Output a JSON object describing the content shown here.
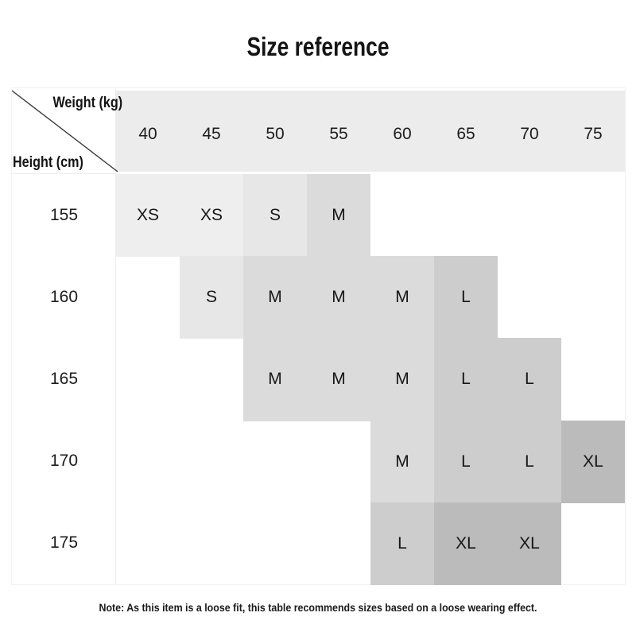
{
  "chart_data": {
    "type": "table",
    "title": "Size reference",
    "col_header": "Weight (kg)",
    "row_header": "Height (cm)",
    "columns": [
      "40",
      "45",
      "50",
      "55",
      "60",
      "65",
      "70",
      "75"
    ],
    "rows": [
      "155",
      "160",
      "165",
      "170",
      "175"
    ],
    "cells": [
      [
        "XS",
        "XS",
        "S",
        "M",
        "",
        "",
        "",
        ""
      ],
      [
        "",
        "S",
        "M",
        "M",
        "M",
        "L",
        "",
        ""
      ],
      [
        "",
        "",
        "M",
        "M",
        "M",
        "L",
        "L",
        ""
      ],
      [
        "",
        "",
        "",
        "",
        "M",
        "L",
        "L",
        "XL"
      ],
      [
        "",
        "",
        "",
        "",
        "L",
        "XL",
        "XL",
        ""
      ]
    ],
    "note": "Note: As this item is a loose fit, this table recommends sizes based on a loose wearing effect."
  },
  "colors": {
    "header_bg": "#ececec",
    "size_shades": {
      "XS": "#eeeeee",
      "S": "#e7e7e7",
      "M": "#dbdbdb",
      "L": "#cdcdcd",
      "XL": "#bbbbbb"
    },
    "text": "#141414",
    "diagonal": "#3c3c3c",
    "gridline": "#ededed"
  }
}
